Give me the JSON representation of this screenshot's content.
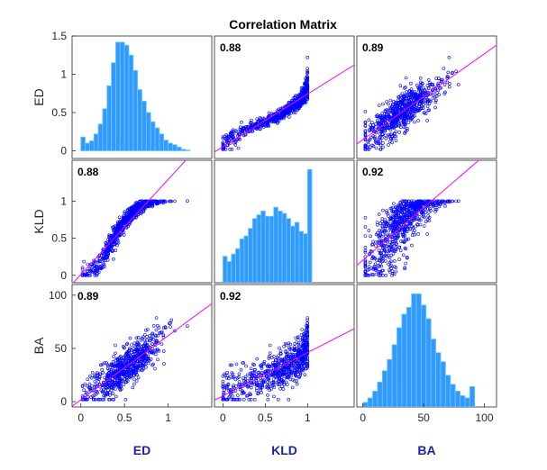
{
  "chart_data": {
    "type": "scatter",
    "title": "Correlation Matrix",
    "variables": [
      "ED",
      "KLD",
      "BA"
    ],
    "colors": {
      "points": "#0000ff",
      "fit_line": "#ff00ff",
      "bars": "#3399ff",
      "bar_edge": "#66ccff",
      "xlabel": "#1f1faa"
    },
    "axes": {
      "ED": {
        "range": [
          -0.1,
          1.5
        ],
        "ticks": [
          "0",
          "0.5",
          "1",
          "1.5"
        ],
        "tick_values": [
          0,
          0.5,
          1,
          1.5
        ]
      },
      "KLD": {
        "range": [
          -0.1,
          1.55
        ],
        "ticks": [
          "0",
          "0.5",
          "1"
        ],
        "tick_values": [
          0,
          0.5,
          1
        ]
      },
      "BA": {
        "range": [
          -5,
          110
        ],
        "ticks": [
          "0",
          "50",
          "100"
        ],
        "tick_values": [
          0,
          50,
          100
        ]
      }
    },
    "x_tick_labels": {
      "ED": [
        "0",
        "0.5",
        "1"
      ],
      "KLD": [
        "0",
        "0.5",
        "1"
      ],
      "BA": [
        "0",
        "50",
        "100"
      ]
    },
    "correlations": [
      [
        "",
        "0.88",
        "0.89"
      ],
      [
        "0.88",
        "",
        "0.92"
      ],
      [
        "0.89",
        "0.92",
        ""
      ]
    ],
    "histograms": {
      "ED": {
        "bin_width": 0.05,
        "bin_start": 0,
        "counts": [
          0.18,
          0.1,
          0.13,
          0.22,
          0.35,
          0.55,
          0.85,
          1.15,
          1.42,
          1.42,
          1.38,
          1.25,
          1.05,
          0.8,
          0.65,
          0.5,
          0.38,
          0.3,
          0.22,
          0.14,
          0.1,
          0.08,
          0.05,
          0.02,
          0.01
        ]
      },
      "KLD": {
        "bin_width": 0.05,
        "bin_start": 0,
        "counts": [
          0.35,
          0.28,
          0.38,
          0.45,
          0.58,
          0.62,
          0.72,
          0.85,
          0.9,
          0.95,
          0.88,
          0.88,
          1.0,
          0.95,
          0.92,
          0.85,
          0.75,
          0.8,
          0.68,
          0.65,
          1.5
        ]
      },
      "BA": {
        "bin_width": 4,
        "bin_start": 0,
        "counts": [
          4,
          8,
          14,
          22,
          32,
          42,
          55,
          70,
          82,
          88,
          100,
          100,
          90,
          78,
          60,
          48,
          40,
          28,
          20,
          14,
          10,
          8,
          18
        ]
      }
    }
  }
}
